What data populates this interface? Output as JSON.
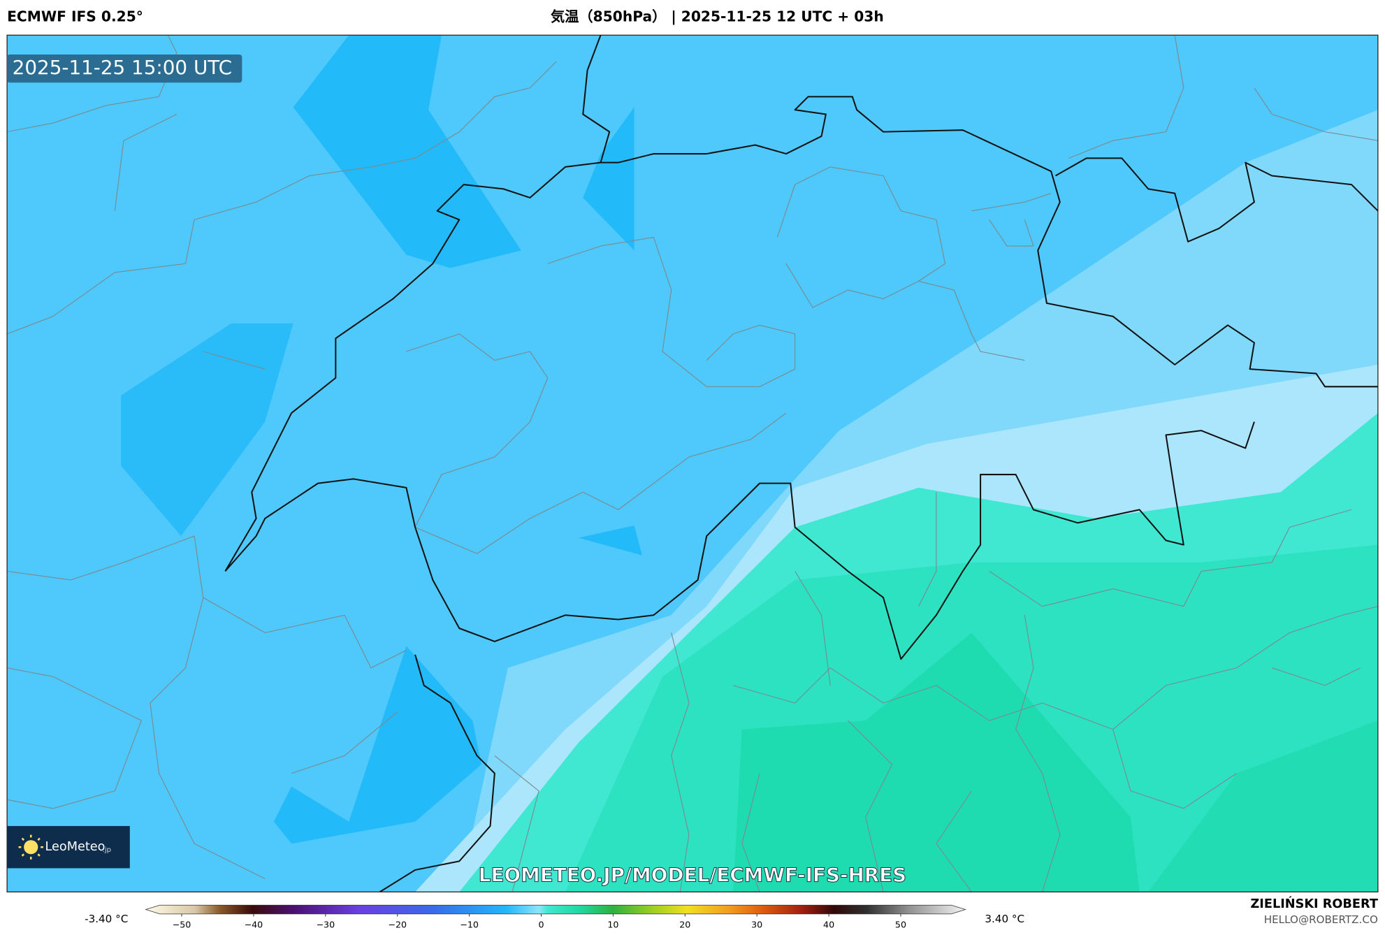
{
  "header": {
    "model": "ECMWF IFS 0.25°",
    "title": "気温（850hPa） | 2025-11-25 12 UTC + 03h"
  },
  "map": {
    "timestamp": "2025-11-25 15:00 UTC",
    "logo": "LeoMeteo",
    "logo_suffix": ".jp",
    "watermark": "LEOMETEO.JP/MODEL/ECMWF-IFS-HRES"
  },
  "colorbar": {
    "min_label": "-3.40 °C",
    "max_label": "3.40 °C",
    "range": [
      -55,
      59
    ],
    "ticks": [
      {
        "value": -50,
        "label": "−50"
      },
      {
        "value": -40,
        "label": "−40"
      },
      {
        "value": -30,
        "label": "−30"
      },
      {
        "value": -20,
        "label": "−20"
      },
      {
        "value": -10,
        "label": "−10"
      },
      0,
      10,
      20,
      30,
      40,
      50
    ]
  },
  "footer": {
    "author": "ZIELIŃSKI ROBERT",
    "contact": "HELLO@ROBERTZ.CO"
  }
}
